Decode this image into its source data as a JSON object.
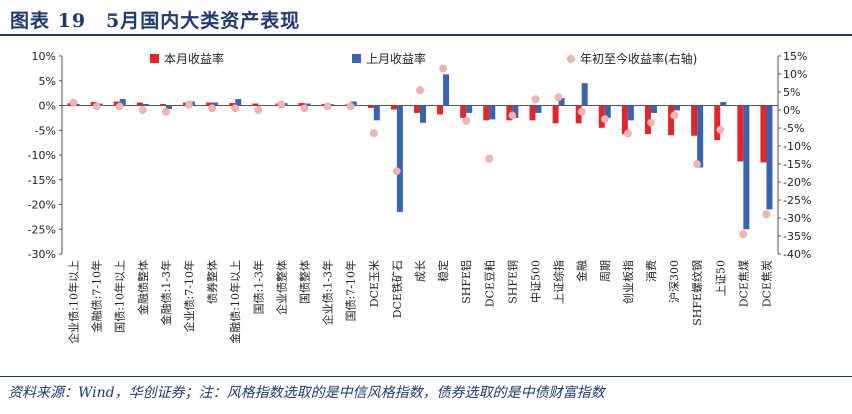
{
  "header": {
    "title": "图表 19　5月国内大类资产表现"
  },
  "footer": {
    "source": "资料来源：Wind，华创证券；注：风格指数选取的是中信风格指数，债券选取的是中债财富指数"
  },
  "colors": {
    "this_month": "#e0262b",
    "last_month": "#3a63b0",
    "ytd": "#f0b5b5"
  },
  "chart_data": {
    "type": "bar",
    "categories": [
      "企业债:10年以上",
      "金融债:7-10年",
      "国债:10年以上",
      "金融债整体",
      "金融债:1-3年",
      "企业债:7-10年",
      "债券整体",
      "金融债:10年以上",
      "国债:1-3年",
      "企业债整体",
      "国债整体",
      "企业债:1-3年",
      "国债:7-10年",
      "DCE玉米",
      "DCE铁矿石",
      "成长",
      "稳定",
      "SHFE铝",
      "DCE豆粕",
      "SHFE铜",
      "中证500",
      "上证综指",
      "金融",
      "周期",
      "创业板指",
      "消费",
      "沪深300",
      "SHFE螺纹钢",
      "上证50",
      "DCE焦煤",
      "DCE焦炭"
    ],
    "series": [
      {
        "name": "本月收益率",
        "axis": "left",
        "kind": "bar",
        "values": [
          0.5,
          0.7,
          0.8,
          0.6,
          0.3,
          0.6,
          0.6,
          0.5,
          0.4,
          0.4,
          0.5,
          0.3,
          0.2,
          -0.5,
          -0.8,
          -1.5,
          -1.8,
          -2.5,
          -3.0,
          -3.0,
          -3.0,
          -3.6,
          -3.6,
          -4.5,
          -5.8,
          -5.8,
          -6.0,
          -6.1,
          -7.0,
          -11.3,
          -11.5
        ]
      },
      {
        "name": "上月收益率",
        "axis": "left",
        "kind": "bar",
        "values": [
          0.3,
          0.4,
          1.3,
          0.3,
          -0.7,
          0.8,
          0.6,
          1.3,
          0.1,
          0.5,
          0.4,
          0.3,
          0.8,
          -3.0,
          -21.5,
          -3.5,
          6.3,
          -1.5,
          -2.8,
          -2.5,
          -1.5,
          1.5,
          4.5,
          -2.5,
          -3.0,
          -1.5,
          -1.0,
          -12.5,
          0.7,
          -25.0,
          -21.0
        ]
      },
      {
        "name": "年初至今收益率(右轴)",
        "axis": "right",
        "kind": "dot",
        "values": [
          2.0,
          1.0,
          1.0,
          0.0,
          -0.5,
          1.5,
          0.5,
          0.5,
          0.0,
          1.5,
          0.5,
          1.0,
          1.0,
          -6.5,
          -17.0,
          5.5,
          11.5,
          -3.0,
          -13.5,
          -1.5,
          3.0,
          3.5,
          -0.5,
          -2.5,
          -6.5,
          -3.5,
          -1.5,
          -15.0,
          -5.5,
          -34.5,
          -29.0
        ]
      }
    ],
    "left_axis": {
      "ylim": [
        -30,
        10
      ],
      "ticks": [
        "10%",
        "5%",
        "0%",
        "-5%",
        "-10%",
        "-15%",
        "-20%",
        "-25%",
        "-30%"
      ]
    },
    "right_axis": {
      "ylim": [
        -40,
        15
      ],
      "ticks": [
        "15%",
        "10%",
        "5%",
        "0%",
        "-5%",
        "-10%",
        "-15%",
        "-20%",
        "-25%",
        "-30%",
        "-35%",
        "-40%"
      ]
    },
    "legend": {
      "position": "top"
    }
  }
}
